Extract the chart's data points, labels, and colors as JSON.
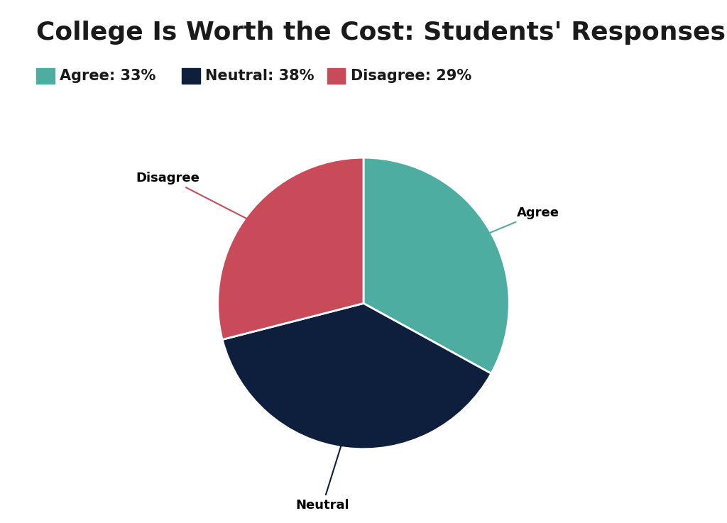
{
  "title": "College Is Worth the Cost: Students' Responses",
  "slices": [
    33,
    38,
    29
  ],
  "labels": [
    "Agree",
    "Neutral",
    "Disagree"
  ],
  "colors": [
    "#4DADA0",
    "#0D1F3C",
    "#C94B5A"
  ],
  "legend_labels": [
    "Agree: 33%",
    "Neutral: 38%",
    "Disagree: 29%"
  ],
  "startangle": 90,
  "title_fontsize": 26,
  "legend_fontsize": 15,
  "label_fontsize": 13,
  "background_color": "#ffffff",
  "wedge_linewidth": 2,
  "wedge_edgecolor": "#ffffff"
}
